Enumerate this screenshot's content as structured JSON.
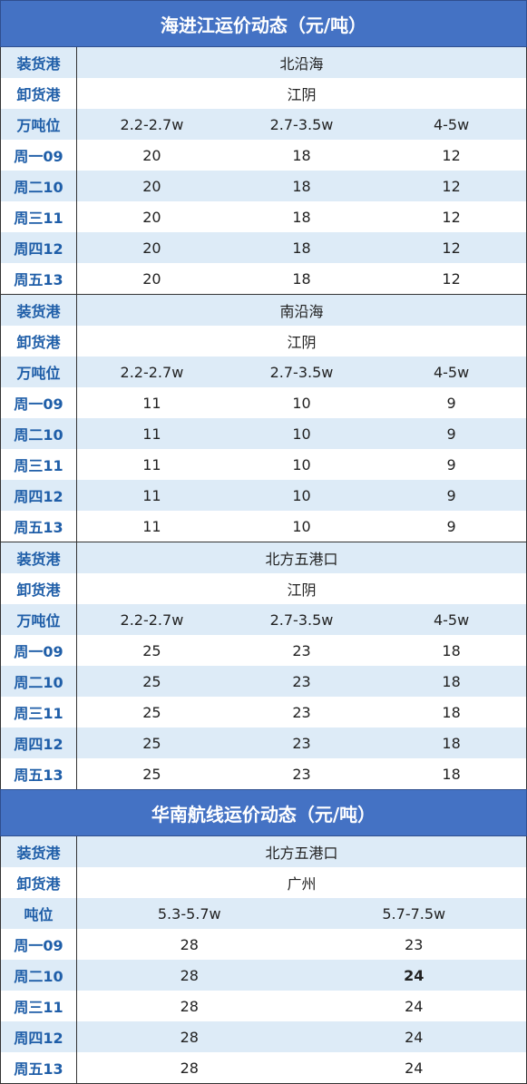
{
  "sea_to_river": {
    "title": "海进江运价动态（元/吨）",
    "labels": {
      "load_port": "装货港",
      "discharge_port": "卸货港",
      "tonnage": "万吨位"
    },
    "sections": [
      {
        "load_port": "北沿海",
        "discharge_port": "江阴",
        "tonnage": [
          "2.2-2.7w",
          "2.7-3.5w",
          "4-5w"
        ],
        "rows": [
          {
            "day": "周一09",
            "values": [
              "20",
              "18",
              "12"
            ]
          },
          {
            "day": "周二10",
            "values": [
              "20",
              "18",
              "12"
            ]
          },
          {
            "day": "周三11",
            "values": [
              "20",
              "18",
              "12"
            ]
          },
          {
            "day": "周四12",
            "values": [
              "20",
              "18",
              "12"
            ]
          },
          {
            "day": "周五13",
            "values": [
              "20",
              "18",
              "12"
            ]
          }
        ]
      },
      {
        "load_port": "南沿海",
        "discharge_port": "江阴",
        "tonnage": [
          "2.2-2.7w",
          "2.7-3.5w",
          "4-5w"
        ],
        "rows": [
          {
            "day": "周一09",
            "values": [
              "11",
              "10",
              "9"
            ]
          },
          {
            "day": "周二10",
            "values": [
              "11",
              "10",
              "9"
            ]
          },
          {
            "day": "周三11",
            "values": [
              "11",
              "10",
              "9"
            ]
          },
          {
            "day": "周四12",
            "values": [
              "11",
              "10",
              "9"
            ]
          },
          {
            "day": "周五13",
            "values": [
              "11",
              "10",
              "9"
            ]
          }
        ]
      },
      {
        "load_port": "北方五港口",
        "discharge_port": "江阴",
        "tonnage": [
          "2.2-2.7w",
          "2.7-3.5w",
          "4-5w"
        ],
        "rows": [
          {
            "day": "周一09",
            "values": [
              "25",
              "23",
              "18"
            ]
          },
          {
            "day": "周二10",
            "values": [
              "25",
              "23",
              "18"
            ]
          },
          {
            "day": "周三11",
            "values": [
              "25",
              "23",
              "18"
            ]
          },
          {
            "day": "周四12",
            "values": [
              "25",
              "23",
              "18"
            ]
          },
          {
            "day": "周五13",
            "values": [
              "25",
              "23",
              "18"
            ]
          }
        ]
      }
    ]
  },
  "south_china": {
    "title": "华南航线运价动态（元/吨）",
    "labels": {
      "load_port": "装货港",
      "discharge_port": "卸货港",
      "tonnage": "吨位"
    },
    "load_port": "北方五港口",
    "discharge_port": "广州",
    "tonnage": [
      "5.3-5.7w",
      "5.7-7.5w"
    ],
    "rows": [
      {
        "day": "周一09",
        "values": [
          "28",
          "23"
        ]
      },
      {
        "day": "周二10",
        "values": [
          "28",
          "24"
        ]
      },
      {
        "day": "周三11",
        "values": [
          "28",
          "24"
        ]
      },
      {
        "day": "周四12",
        "values": [
          "28",
          "24"
        ]
      },
      {
        "day": "周五13",
        "values": [
          "28",
          "24"
        ]
      }
    ]
  }
}
